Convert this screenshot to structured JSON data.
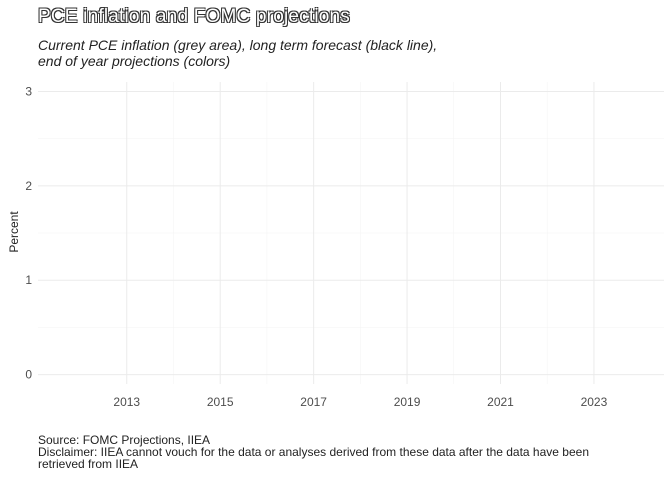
{
  "chart_data": {
    "type": "line",
    "title": "PCE inflation and FOMC projections",
    "subtitle_lines": [
      "Current PCE inflation (grey area), long term forecast (black line),",
      "end of year projections (colors)"
    ],
    "xlabel": "",
    "ylabel": "Percent",
    "x_ticks": [
      "2013",
      "2015",
      "2017",
      "2019",
      "2021",
      "2023"
    ],
    "y_ticks": [
      "0",
      "1",
      "2",
      "3"
    ],
    "xlim": [
      2011.1,
      2024.5
    ],
    "ylim": [
      -0.1,
      3.1
    ],
    "grid": true,
    "series": [],
    "caption_lines": [
      "Source: FOMC Projections, IIEA",
      "Disclaimer: IIEA cannot vouch for the data or analyses derived from these data after the data have been",
      "retrieved from IIEA"
    ]
  }
}
